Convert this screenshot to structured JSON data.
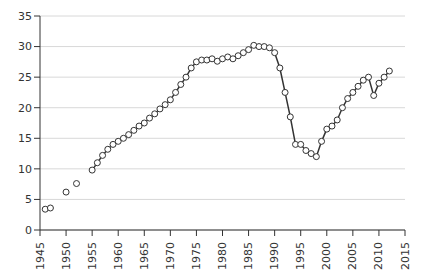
{
  "chart_data": {
    "type": "line",
    "x": [
      1946,
      1947,
      1948,
      1950,
      1951,
      1952,
      1953,
      1955,
      1956,
      1957,
      1958,
      1959,
      1960,
      1961,
      1962,
      1963,
      1964,
      1965,
      1966,
      1967,
      1968,
      1969,
      1970,
      1971,
      1972,
      1973,
      1974,
      1975,
      1976,
      1977,
      1978,
      1979,
      1980,
      1981,
      1982,
      1983,
      1984,
      1985,
      1986,
      1987,
      1988,
      1989,
      1990,
      1991,
      1992,
      1993,
      1994,
      1995,
      1996,
      1997,
      1998,
      1999,
      2000,
      2001,
      2002,
      2003,
      2004,
      2005,
      2006,
      2007,
      2008,
      2009,
      2010,
      2011,
      2012
    ],
    "values": [
      3.4,
      3.6,
      null,
      6.2,
      null,
      7.6,
      null,
      9.8,
      11,
      12.2,
      13.2,
      14,
      14.5,
      15,
      15.6,
      16.3,
      17,
      17.5,
      18.3,
      19,
      19.8,
      20.5,
      21.3,
      22.5,
      23.8,
      25,
      26.5,
      27.5,
      27.8,
      27.8,
      28,
      27.6,
      28,
      28.3,
      28,
      28.5,
      29,
      29.5,
      30.2,
      30,
      30,
      29.8,
      29,
      26.5,
      22.5,
      18.5,
      14,
      14,
      13,
      12.5,
      12,
      14.5,
      16.5,
      17,
      18,
      20,
      21.5,
      22.5,
      23.5,
      24.5,
      25,
      22,
      24,
      25,
      26
    ],
    "color": "#333333",
    "marker": "circle",
    "line_style": "solid",
    "xlim": [
      1945,
      2015
    ],
    "xticks": [
      1945,
      1950,
      1955,
      1960,
      1965,
      1970,
      1975,
      1980,
      1985,
      1990,
      1995,
      2000,
      2005,
      2010,
      2015
    ],
    "ylim": [
      0,
      35
    ],
    "yticks": [
      0,
      5,
      10,
      15,
      20,
      25,
      30,
      35
    ],
    "grid": true
  }
}
